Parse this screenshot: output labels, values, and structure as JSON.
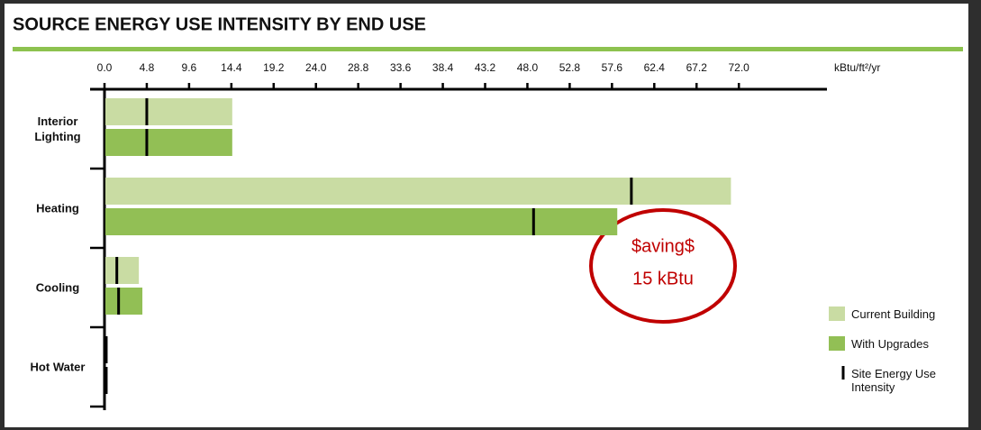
{
  "chart_data": {
    "type": "bar",
    "orientation": "horizontal",
    "title": "SOURCE ENERGY USE INTENSITY BY END USE",
    "x_label": "kBtu/ft²/yr",
    "categories": [
      "Interior Lighting",
      "Heating",
      "Cooling",
      "Hot Water"
    ],
    "series": [
      {
        "name": "Current Building",
        "color": "#c9dca3",
        "values": [
          14.5,
          71.1,
          3.9,
          0.3
        ]
      },
      {
        "name": "With Upgrades",
        "color": "#92bf55",
        "values": [
          14.5,
          58.2,
          4.3,
          0.3
        ]
      }
    ],
    "site_energy": {
      "name": "Site Energy Use Intensity",
      "color": "#000000",
      "current": [
        4.8,
        59.8,
        1.4,
        0.2
      ],
      "upgrades": [
        4.8,
        48.7,
        1.6,
        0.2
      ]
    },
    "xlim": [
      0,
      82
    ],
    "xticks": [
      {
        "value": 0,
        "label": "0.0"
      },
      4.8,
      9.6,
      14.4,
      19.2,
      {
        "value": 24,
        "label": "24.0"
      },
      28.8,
      33.6,
      38.4,
      43.2,
      {
        "value": 48,
        "label": "48.0"
      },
      52.8,
      57.6,
      62.4,
      67.2,
      {
        "value": 72,
        "label": "72.0"
      }
    ],
    "annotations": [
      "$aving$",
      "15 kBtu"
    ],
    "annotation_color": "#c00000"
  }
}
